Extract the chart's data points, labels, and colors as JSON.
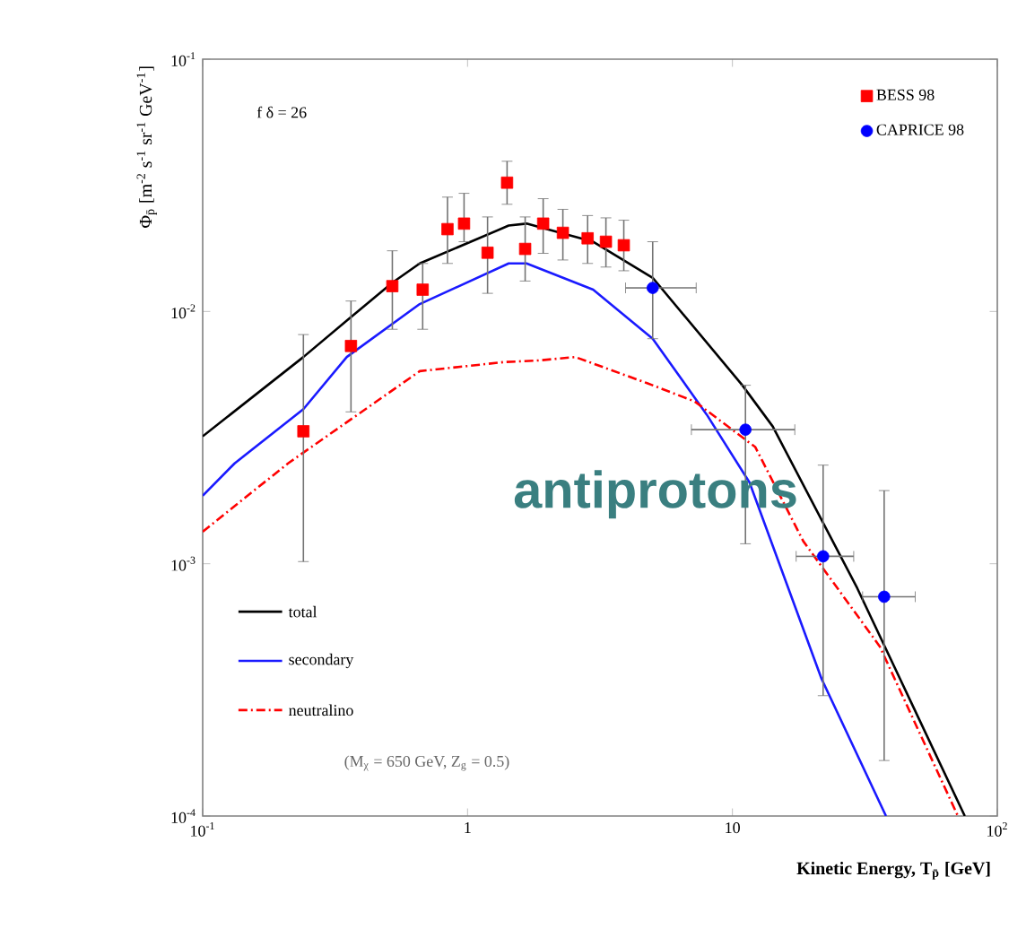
{
  "chart_data": {
    "type": "line",
    "xlabel": "Kinetic Energy, T$_{p̄}$ [GeV]",
    "ylabel": "Φ$_{p̄}$ [m$^{-2}$ s$^{-1}$ sr$^{-1}$ GeV$^{-1}$]",
    "log": "xy",
    "xlim": [
      0.1,
      100
    ],
    "ylim": [
      0.0001,
      0.1
    ],
    "xticks": [
      {
        "value": 0.1,
        "label": "10$^{-1}$"
      },
      1,
      10,
      {
        "value": 100,
        "label": "10$^{2}$"
      }
    ],
    "yticks": [
      {
        "value": 0.0001,
        "label": "10$^{-4}$"
      },
      {
        "value": 0.001,
        "label": "10$^{-3}$"
      },
      {
        "value": 0.01,
        "label": "10$^{-2}$"
      },
      {
        "value": 0.1,
        "label": "10$^{-1}$"
      }
    ],
    "legend": "top right",
    "annotations": [
      "f δ = 26",
      "(M$_{χ}$ = 650 GeV, Z$_{g}$ = 0.5)",
      "antiprotons"
    ],
    "series": [
      {
        "name": "total",
        "color": "#000000",
        "line_style": "solid",
        "x": [
          0.1,
          0.24,
          0.35,
          0.52,
          0.66,
          1.43,
          1.67,
          2.98,
          5.0,
          10.9,
          14.2,
          29.6,
          75.4
        ],
        "values": [
          0.0032,
          0.0066,
          0.0092,
          0.013,
          0.0155,
          0.0219,
          0.0223,
          0.0189,
          0.0136,
          0.0051,
          0.0035,
          0.0008,
          0.0001
        ]
      },
      {
        "name": "secondary",
        "color": "#1a1aff",
        "line_style": "solid",
        "x": [
          0.1,
          0.132,
          0.24,
          0.35,
          0.66,
          1.43,
          1.67,
          2.98,
          5.0,
          8.0,
          11.6,
          21.7,
          38
        ],
        "values": [
          0.00186,
          0.0025,
          0.0041,
          0.0066,
          0.0107,
          0.0155,
          0.0155,
          0.0122,
          0.0078,
          0.0039,
          0.0021,
          0.00035,
          0.0001
        ]
      },
      {
        "name": "neutralino",
        "color": "#ff0000",
        "line_style": "dashed",
        "x": [
          0.1,
          0.21,
          0.66,
          1.37,
          1.87,
          2.55,
          4.76,
          7.2,
          12.2,
          18.5,
          36,
          71
        ],
        "values": [
          0.00134,
          0.0025,
          0.0058,
          0.0063,
          0.0064,
          0.0066,
          0.0052,
          0.0044,
          0.0029,
          0.00123,
          0.00047,
          0.0001
        ]
      },
      {
        "name": "BESS 98",
        "type": "scatter",
        "marker": "square",
        "color": "#ff0000",
        "x": [
          0.24,
          0.363,
          0.52,
          0.677,
          0.84,
          0.97,
          1.19,
          1.41,
          1.65,
          1.93,
          2.29,
          2.84,
          3.33,
          3.89
        ],
        "values": [
          0.00335,
          0.0073,
          0.0126,
          0.0122,
          0.0212,
          0.0223,
          0.0171,
          0.0324,
          0.0177,
          0.0223,
          0.0205,
          0.0195,
          0.0189,
          0.0183
        ],
        "errors": [
          [
            0.00102,
            0.0081
          ],
          [
            0.004,
            0.011
          ],
          [
            0.0085,
            0.0174
          ],
          [
            0.0085,
            0.0155
          ],
          [
            0.0155,
            0.0284
          ],
          [
            0.0189,
            0.0294
          ],
          [
            0.0118,
            0.0237
          ],
          [
            0.0266,
            0.0394
          ],
          [
            0.0132,
            0.0237
          ],
          [
            0.017,
            0.028
          ],
          [
            0.016,
            0.0254
          ],
          [
            0.0155,
            0.024
          ],
          [
            0.015,
            0.0235
          ],
          [
            0.0145,
            0.023
          ]
        ]
      },
      {
        "name": "CAPRICE 98",
        "type": "scatter",
        "marker": "circle",
        "color": "#0000ff",
        "x": [
          5.0,
          11.2,
          22.0,
          37.4
        ],
        "values": [
          0.0124,
          0.0034,
          0.00107,
          0.00074
        ],
        "errors": [
          [
            0.0078,
            0.0189
          ],
          [
            0.0012,
            0.0051
          ],
          [
            0.0003,
            0.00246
          ],
          [
            0.000166,
            0.00195
          ]
        ],
        "xerrors": [
          [
            3.95,
            7.3
          ],
          [
            7.0,
            17.2
          ],
          [
            17.4,
            28.7
          ],
          [
            31,
            49
          ]
        ]
      }
    ]
  }
}
